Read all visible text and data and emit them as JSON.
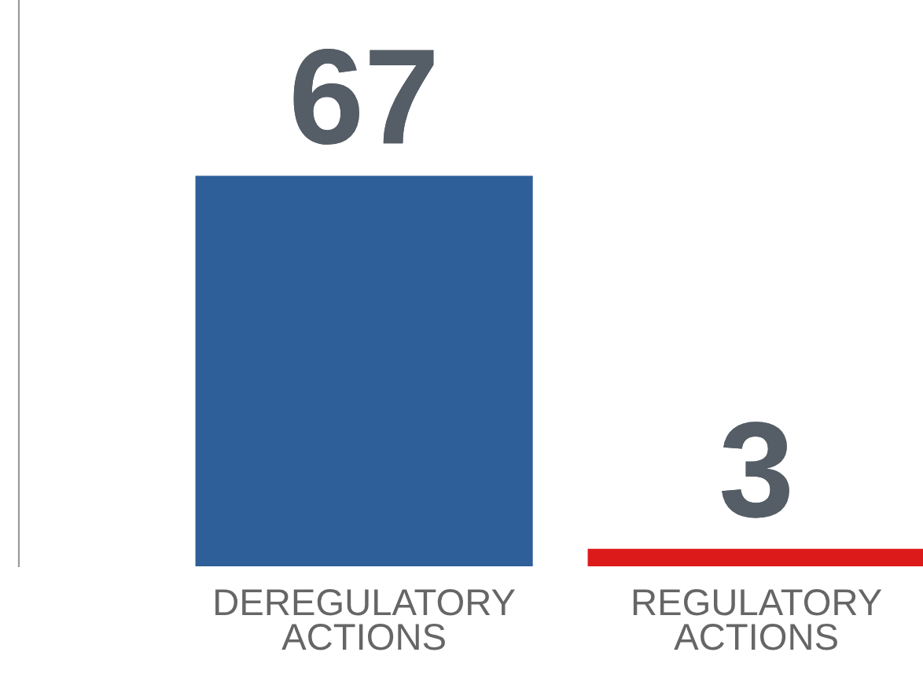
{
  "chart_data": {
    "type": "bar",
    "categories": [
      "DEREGULATORY\nACTIONS",
      "REGULATORY\nACTIONS"
    ],
    "values": [
      67,
      3
    ],
    "colors": [
      "#2e5f98",
      "#dd1a1a"
    ],
    "data_labels": true,
    "grid": false,
    "legend": false,
    "tick_labels": "x"
  }
}
